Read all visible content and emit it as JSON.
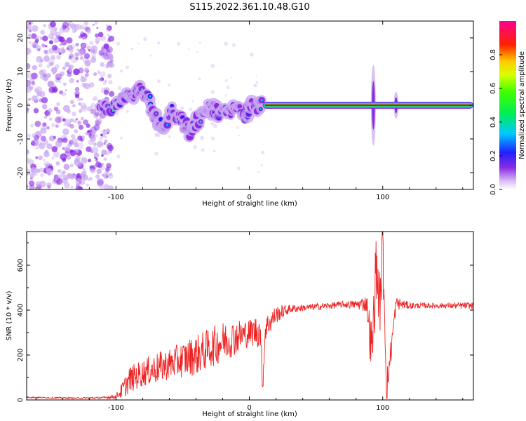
{
  "title": "S115.2022.361.10.48.G10",
  "chart_data": [
    {
      "type": "heatmap",
      "title": "S115.2022.361.10.48.G10",
      "xlabel": "Height of straight line (km)",
      "ylabel": "Frequency (Hz)",
      "xlim": [
        -167,
        168
      ],
      "ylim": [
        -25,
        25
      ],
      "xticks": [
        -100,
        0,
        100
      ],
      "yticks": [
        -20,
        -10,
        0,
        10,
        20
      ],
      "grid": false,
      "colorbar": {
        "label": "Normalized spectral amplitude",
        "range": [
          0.0,
          1.0
        ],
        "ticks": [
          0.0,
          0.2,
          0.4,
          0.6,
          0.8
        ],
        "colormap": [
          "#ffffff",
          "#c9a8f0",
          "#8a2be2",
          "#2020ff",
          "#00c8ff",
          "#00ff66",
          "#c8ff00",
          "#ffcc00",
          "#ff0000",
          "#ff0090"
        ]
      },
      "features": {
        "noise_region_x": [
          -167,
          -103
        ],
        "carrier_line_x": [
          10,
          168
        ],
        "carrier_frequency_hz": 0,
        "carrier_amplitude": 0.9,
        "spike_x": [
          93,
          110
        ],
        "wander_track": [
          {
            "x": -112,
            "y": -2
          },
          {
            "x": -100,
            "y": 0.5
          },
          {
            "x": -90,
            "y": 2.5
          },
          {
            "x": -82,
            "y": 4
          },
          {
            "x": -75,
            "y": 2
          },
          {
            "x": -72,
            "y": -3
          },
          {
            "x": -65,
            "y": -6
          },
          {
            "x": -58,
            "y": -2
          },
          {
            "x": -50,
            "y": -5
          },
          {
            "x": -44,
            "y": -8
          },
          {
            "x": -38,
            "y": -4
          },
          {
            "x": -30,
            "y": -1
          },
          {
            "x": -22,
            "y": -2
          },
          {
            "x": -12,
            "y": -1
          },
          {
            "x": -4,
            "y": -3
          },
          {
            "x": 3,
            "y": 0
          },
          {
            "x": 10,
            "y": 0
          }
        ]
      }
    },
    {
      "type": "line",
      "xlabel": "Height of straight line (km)",
      "ylabel": "SNR (10 * v/v)",
      "xlim": [
        -167,
        168
      ],
      "ylim": [
        0,
        750
      ],
      "xticks": [
        -100,
        0,
        100
      ],
      "yticks": [
        0,
        200,
        400,
        600
      ],
      "grid": false,
      "color": "#ee2222",
      "series": [
        {
          "x": [
            -167,
            -150,
            -130,
            -110,
            -100,
            -95,
            -90,
            -80,
            -70,
            -60,
            -50,
            -40,
            -30,
            -20,
            -10,
            0,
            8,
            10,
            12,
            20,
            30,
            40,
            50,
            60,
            70,
            80,
            88,
            92,
            95,
            98,
            100,
            103,
            110,
            120,
            130,
            140,
            150,
            160,
            168
          ],
          "values": [
            12,
            10,
            8,
            10,
            15,
            45,
            90,
            120,
            140,
            160,
            180,
            200,
            230,
            260,
            280,
            300,
            310,
            60,
            320,
            380,
            405,
            410,
            415,
            420,
            425,
            425,
            430,
            200,
            600,
            420,
            700,
            50,
            430,
            420,
            420,
            420,
            420,
            420,
            420
          ],
          "noise": [
            3,
            3,
            3,
            4,
            10,
            40,
            60,
            60,
            70,
            70,
            80,
            90,
            90,
            90,
            80,
            60,
            80,
            40,
            60,
            40,
            20,
            15,
            15,
            15,
            15,
            20,
            40,
            150,
            150,
            120,
            150,
            80,
            30,
            15,
            12,
            12,
            12,
            15,
            15
          ]
        }
      ]
    }
  ]
}
